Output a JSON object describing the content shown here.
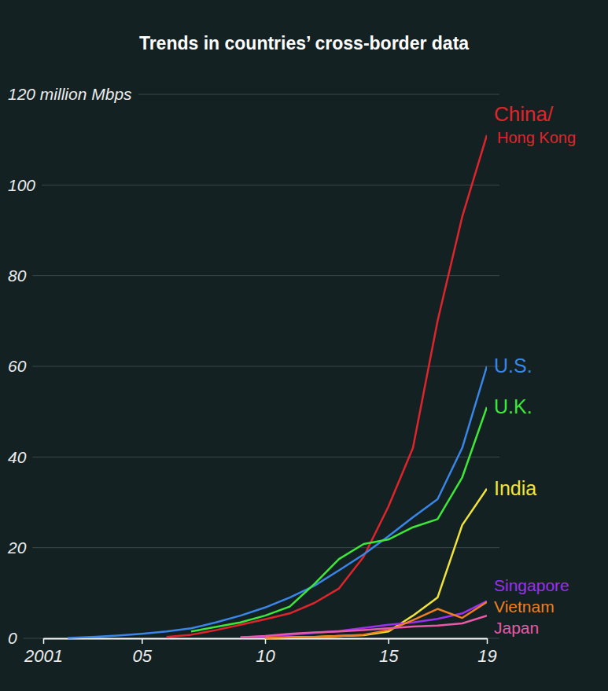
{
  "chart_data": {
    "type": "line",
    "title": "Trends in countries’ cross-border data",
    "x": [
      2001,
      2002,
      2003,
      2004,
      2005,
      2006,
      2007,
      2008,
      2009,
      2010,
      2011,
      2012,
      2013,
      2014,
      2015,
      2016,
      2017,
      2018,
      2019
    ],
    "xlim": [
      2001,
      2019
    ],
    "xticks": [
      2001,
      {
        "value": 2005,
        "label": "05"
      },
      {
        "value": 2010,
        "label": "10"
      },
      {
        "value": 2015,
        "label": "15"
      },
      {
        "value": 2019,
        "label": "19"
      }
    ],
    "ylim": [
      0,
      120
    ],
    "yticks": [
      0,
      20,
      40,
      60,
      80,
      100,
      {
        "value": 120,
        "label": "120 million Mbps"
      }
    ],
    "grid": true,
    "series": [
      {
        "name": "China/Hong Kong",
        "color": "#e0242b",
        "values": [
          null,
          null,
          null,
          null,
          null,
          0.3,
          0.8,
          1.8,
          3,
          4.2,
          5.5,
          7.8,
          11,
          18,
          29,
          42,
          70,
          93,
          111
        ]
      },
      {
        "name": "U.S.",
        "color": "#3a86e8",
        "values": [
          null,
          0.1,
          0.3,
          0.6,
          1,
          1.5,
          2.2,
          3.5,
          5,
          6.8,
          9,
          11.6,
          15,
          18.5,
          22.5,
          26.7,
          30.7,
          42,
          60
        ]
      },
      {
        "name": "U.K.",
        "color": "#3ee83a",
        "values": [
          null,
          null,
          null,
          null,
          null,
          null,
          1.5,
          2.5,
          3.5,
          5,
          7,
          12,
          17.5,
          20.8,
          21.8,
          24.5,
          26.3,
          35.5,
          51
        ]
      },
      {
        "name": "India",
        "color": "#f2e33a",
        "values": [
          null,
          null,
          null,
          null,
          null,
          null,
          null,
          null,
          null,
          0.1,
          0.2,
          0.3,
          0.5,
          0.7,
          1.5,
          5,
          9,
          25,
          33
        ]
      },
      {
        "name": "Singapore",
        "color": "#9b30f0",
        "values": [
          null,
          null,
          null,
          null,
          null,
          null,
          null,
          null,
          0.2,
          0.4,
          0.8,
          1.2,
          1.6,
          2.3,
          3,
          3.5,
          4.3,
          5.5,
          8.2
        ]
      },
      {
        "name": "Vietnam",
        "color": "#f07f1e",
        "values": [
          null,
          null,
          null,
          null,
          null,
          null,
          null,
          null,
          null,
          0.1,
          0.2,
          0.3,
          0.5,
          0.8,
          1.8,
          4,
          6.5,
          4.5,
          8
        ]
      },
      {
        "name": "Japan",
        "color": "#e85aa8",
        "values": [
          null,
          null,
          null,
          null,
          null,
          null,
          null,
          null,
          0.2,
          0.5,
          1,
          1.3,
          1.5,
          1.8,
          2.2,
          2.6,
          2.8,
          3.3,
          5
        ]
      }
    ]
  }
}
